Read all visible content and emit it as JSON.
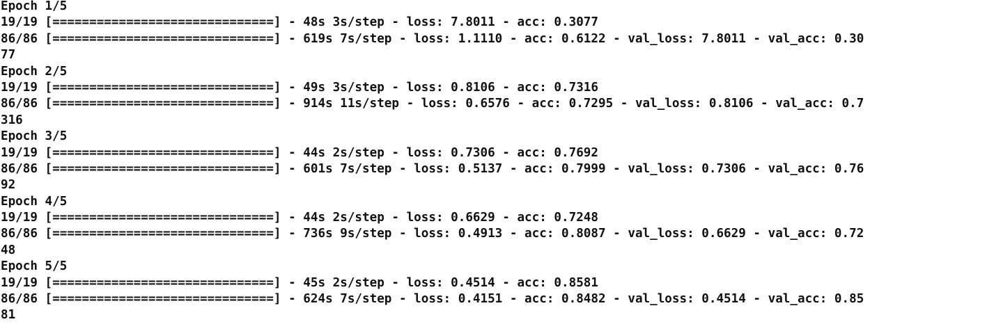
{
  "console": {
    "lines": [
      "Epoch 1/5",
      "19/19 [==============================] - 48s 3s/step - loss: 7.8011 - acc: 0.3077",
      "86/86 [==============================] - 619s 7s/step - loss: 1.1110 - acc: 0.6122 - val_loss: 7.8011 - val_acc: 0.30",
      "77",
      "Epoch 2/5",
      "19/19 [==============================] - 49s 3s/step - loss: 0.8106 - acc: 0.7316",
      "86/86 [==============================] - 914s 11s/step - loss: 0.6576 - acc: 0.7295 - val_loss: 0.8106 - val_acc: 0.7",
      "316",
      "Epoch 3/5",
      "19/19 [==============================] - 44s 2s/step - loss: 0.7306 - acc: 0.7692",
      "86/86 [==============================] - 601s 7s/step - loss: 0.5137 - acc: 0.7999 - val_loss: 0.7306 - val_acc: 0.76",
      "92",
      "Epoch 4/5",
      "19/19 [==============================] - 44s 2s/step - loss: 0.6629 - acc: 0.7248",
      "86/86 [==============================] - 736s 9s/step - loss: 0.4913 - acc: 0.8087 - val_loss: 0.6629 - val_acc: 0.72",
      "48",
      "Epoch 5/5",
      "19/19 [==============================] - 45s 2s/step - loss: 0.4514 - acc: 0.8581",
      "86/86 [==============================] - 624s 7s/step - loss: 0.4151 - acc: 0.8482 - val_loss: 0.4514 - val_acc: 0.85",
      "81"
    ]
  }
}
